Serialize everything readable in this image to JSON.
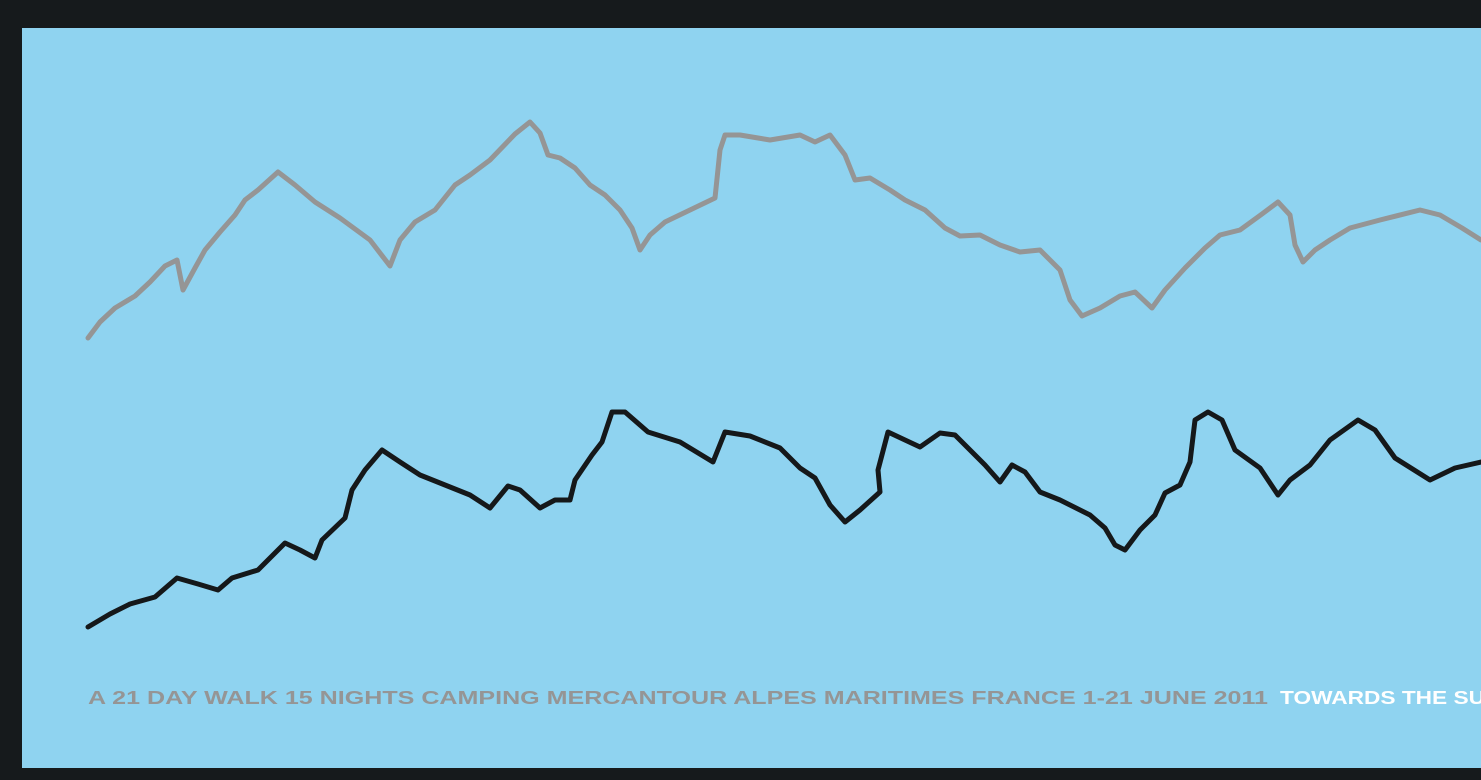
{
  "caption": {
    "main": "A 21 DAY WALK 15 NIGHTS CAMPING MERCANTOUR ALPES MARITIMES FRANCE 1-21 JUNE 2011",
    "highlight": "TOWARDS THE SU"
  }
}
